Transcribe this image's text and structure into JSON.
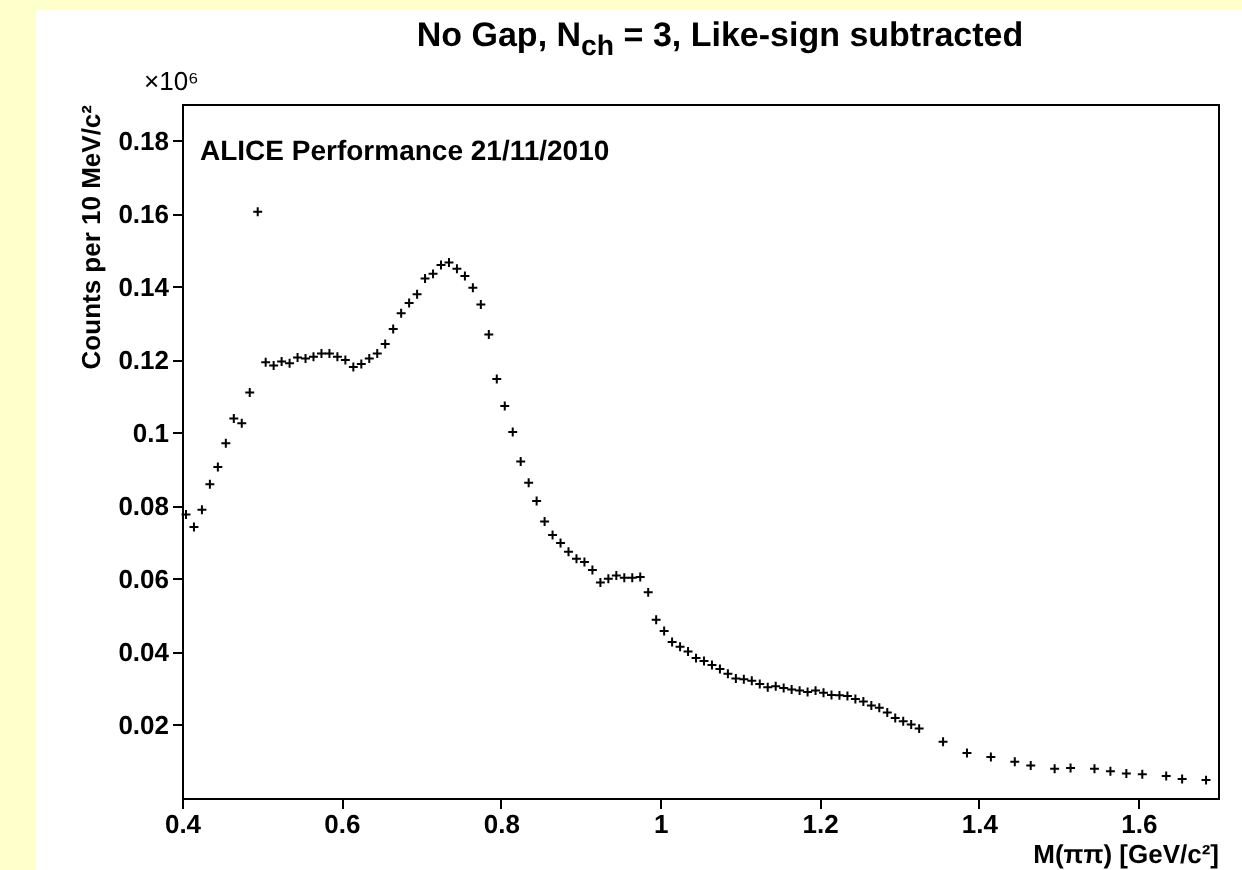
{
  "chart_data": {
    "type": "scatter",
    "title": "No Gap, N$_{ch}$ = 3, Like-sign subtracted",
    "xlabel": "M(ππ) [GeV/c²]",
    "ylabel": "Counts per 10 MeV/c²",
    "annotations": [
      "ALICE Performance 21/11/2010",
      "×10⁶"
    ],
    "xlim": [
      0.4,
      1.7
    ],
    "ylim": [
      0,
      0.19
    ],
    "xticks": [
      0.4,
      0.6,
      0.8,
      1,
      1.2,
      1.4,
      1.6
    ],
    "yticks": [
      0.02,
      0.04,
      0.06,
      0.08,
      0.1,
      0.12,
      0.14,
      0.16,
      0.18
    ],
    "grid": false,
    "marker": "cross",
    "series": [
      {
        "color": "#000000",
        "x": [
          0.405,
          0.415,
          0.425,
          0.435,
          0.445,
          0.455,
          0.465,
          0.475,
          0.485,
          0.495,
          0.505,
          0.515,
          0.525,
          0.535,
          0.545,
          0.555,
          0.565,
          0.575,
          0.585,
          0.595,
          0.605,
          0.615,
          0.625,
          0.635,
          0.645,
          0.655,
          0.665,
          0.675,
          0.685,
          0.695,
          0.705,
          0.715,
          0.725,
          0.735,
          0.745,
          0.755,
          0.765,
          0.775,
          0.785,
          0.795,
          0.805,
          0.815,
          0.825,
          0.835,
          0.845,
          0.855,
          0.865,
          0.875,
          0.885,
          0.895,
          0.905,
          0.915,
          0.925,
          0.935,
          0.945,
          0.955,
          0.965,
          0.975,
          0.985,
          0.995,
          1.005,
          1.015,
          1.025,
          1.035,
          1.045,
          1.055,
          1.065,
          1.075,
          1.085,
          1.095,
          1.105,
          1.115,
          1.125,
          1.135,
          1.145,
          1.155,
          1.165,
          1.175,
          1.185,
          1.195,
          1.205,
          1.215,
          1.225,
          1.235,
          1.245,
          1.255,
          1.265,
          1.275,
          1.285,
          1.295,
          1.305,
          1.315,
          1.325,
          1.355,
          1.385,
          1.415,
          1.445,
          1.465,
          1.495,
          1.515,
          1.545,
          1.565,
          1.585,
          1.605,
          1.635,
          1.655,
          1.685
        ],
        "values": [
          0.0776,
          0.0742,
          0.0789,
          0.0859,
          0.0906,
          0.0971,
          0.1039,
          0.1026,
          0.111,
          0.1605,
          0.1193,
          0.1184,
          0.1195,
          0.119,
          0.1206,
          0.1203,
          0.1208,
          0.1217,
          0.1217,
          0.1208,
          0.1199,
          0.118,
          0.1188,
          0.1203,
          0.1217,
          0.1243,
          0.1284,
          0.1327,
          0.1355,
          0.1379,
          0.1422,
          0.1435,
          0.1459,
          0.1466,
          0.1449,
          0.1429,
          0.1397,
          0.1351,
          0.1269,
          0.1147,
          0.1073,
          0.1002,
          0.0921,
          0.0863,
          0.0813,
          0.0757,
          0.072,
          0.0698,
          0.0674,
          0.0655,
          0.0646,
          0.0624,
          0.059,
          0.06,
          0.0609,
          0.0603,
          0.0603,
          0.0605,
          0.0563,
          0.0488,
          0.0457,
          0.0427,
          0.0414,
          0.0401,
          0.0383,
          0.0375,
          0.0364,
          0.0353,
          0.034,
          0.0327,
          0.0325,
          0.0321,
          0.0312,
          0.0303,
          0.0306,
          0.0301,
          0.0297,
          0.0294,
          0.029,
          0.0294,
          0.0288,
          0.0282,
          0.0281,
          0.0279,
          0.0271,
          0.0264,
          0.0253,
          0.0247,
          0.0234,
          0.0219,
          0.021,
          0.0201,
          0.019,
          0.0154,
          0.0123,
          0.0112,
          0.0099,
          0.0089,
          0.008,
          0.0082,
          0.008,
          0.0073,
          0.0067,
          0.0065,
          0.006,
          0.0052,
          0.0049
        ]
      }
    ]
  }
}
